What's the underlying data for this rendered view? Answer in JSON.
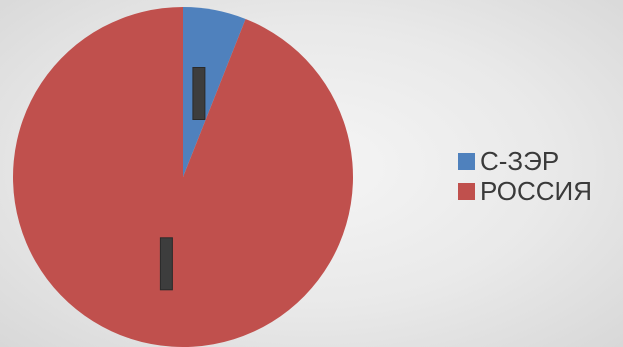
{
  "chart_data": {
    "type": "pie",
    "title": "",
    "legend_position": "right",
    "slices": [
      {
        "name": "С-ЗЭР",
        "value": 6,
        "color": "#4f81bd",
        "data_label": ""
      },
      {
        "name": "РОССИЯ",
        "value": 94,
        "color": "#c0504d",
        "data_label": ""
      }
    ]
  }
}
